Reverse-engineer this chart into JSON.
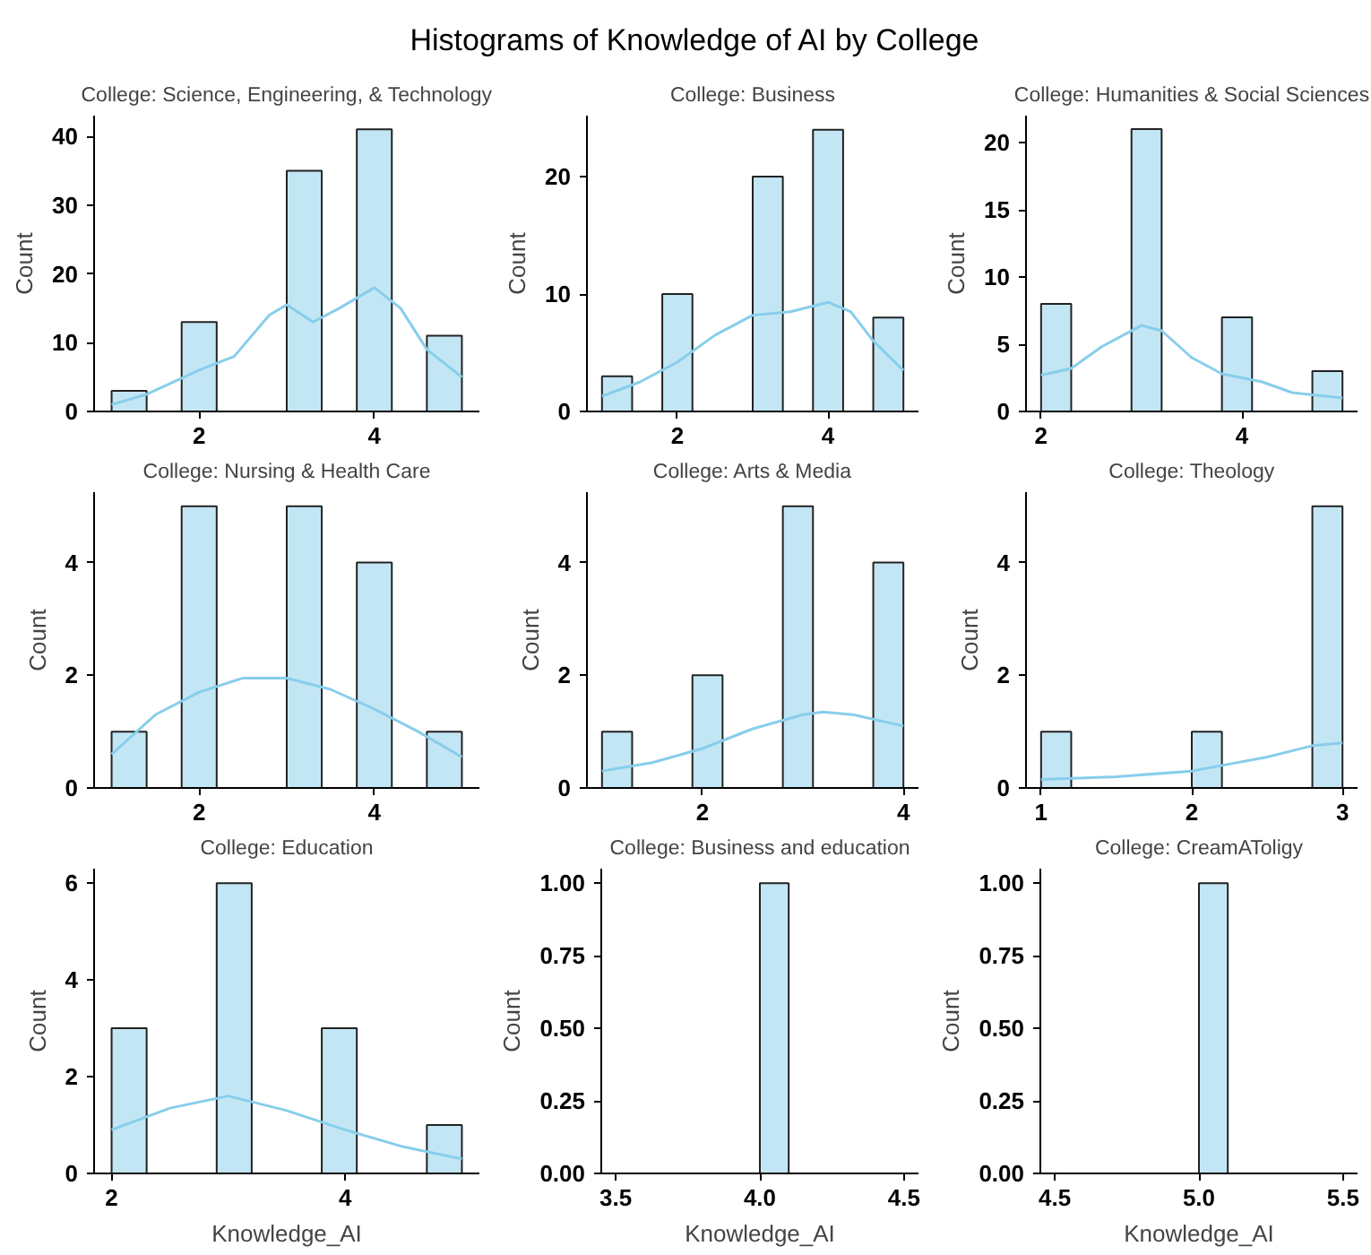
{
  "chart_data": [
    {
      "type": "histogram",
      "annotations": [
        "Histograms of Knowledge of AI by College"
      ],
      "title": "College: Science, Engineering, & Technology",
      "ylabel": "Count",
      "bins": [
        1,
        1.4,
        1.8,
        2.2,
        2.6,
        3,
        3.4,
        3.8,
        4.2,
        4.6,
        5
      ],
      "values": [
        3,
        0,
        13,
        0,
        0,
        35,
        0,
        41,
        0,
        11
      ],
      "color": "#c3e6f5",
      "series": [
        {
          "type": "line",
          "color": "#87ceeb",
          "x": [
            1,
            1.4,
            2,
            2.4,
            2.8,
            3,
            3.3,
            3.6,
            4,
            4.3,
            4.6,
            5
          ],
          "values": [
            1,
            2.5,
            6,
            8,
            14,
            15.5,
            13,
            15,
            18,
            15,
            9,
            5
          ]
        }
      ],
      "xlim": [
        0.8,
        5.2
      ],
      "ylim": [
        0,
        43
      ],
      "xticks": [
        2,
        4
      ],
      "yticks": [
        0,
        10,
        20,
        30,
        40
      ],
      "grid": false
    },
    {
      "type": "histogram",
      "title": "College: Business",
      "ylabel": "Count",
      "bins": [
        1,
        1.4,
        1.8,
        2.2,
        2.6,
        3,
        3.4,
        3.8,
        4.2,
        4.6,
        5
      ],
      "values": [
        3,
        0,
        10,
        0,
        0,
        20,
        0,
        24,
        0,
        8
      ],
      "color": "#c3e6f5",
      "series": [
        {
          "type": "line",
          "color": "#87ceeb",
          "x": [
            1,
            1.5,
            2,
            2.5,
            3,
            3.5,
            4,
            4.3,
            4.6,
            5
          ],
          "values": [
            1.3,
            2.5,
            4.2,
            6.5,
            8.2,
            8.5,
            9.3,
            8.5,
            6,
            3.5
          ]
        }
      ],
      "xlim": [
        0.8,
        5.2
      ],
      "ylim": [
        0,
        25.2
      ],
      "xticks": [
        2,
        4
      ],
      "yticks": [
        0,
        10,
        20
      ],
      "grid": false
    },
    {
      "type": "histogram",
      "title": "College: Humanities & Social Sciences",
      "ylabel": "Count",
      "bins": [
        2,
        2.3,
        2.6,
        2.9,
        3.2,
        3.5,
        3.8,
        4.1,
        4.4,
        4.7,
        5
      ],
      "values": [
        8,
        0,
        0,
        21,
        0,
        0,
        7,
        0,
        0,
        3
      ],
      "color": "#c3e6f5",
      "series": [
        {
          "type": "line",
          "color": "#87ceeb",
          "x": [
            2,
            2.3,
            2.6,
            3,
            3.2,
            3.5,
            3.8,
            4.2,
            4.5,
            5
          ],
          "values": [
            2.7,
            3.2,
            4.8,
            6.4,
            6,
            4,
            2.8,
            2.2,
            1.4,
            1
          ]
        }
      ],
      "xlim": [
        1.85,
        5.15
      ],
      "ylim": [
        0,
        22
      ],
      "xticks": [
        2,
        4
      ],
      "yticks": [
        0,
        5,
        10,
        15,
        20
      ],
      "grid": false
    },
    {
      "type": "histogram",
      "title": "College: Nursing & Health Care",
      "ylabel": "Count",
      "bins": [
        1,
        1.4,
        1.8,
        2.2,
        2.6,
        3,
        3.4,
        3.8,
        4.2,
        4.6,
        5
      ],
      "values": [
        1,
        0,
        5,
        0,
        0,
        5,
        0,
        4,
        0,
        1
      ],
      "color": "#c3e6f5",
      "series": [
        {
          "type": "line",
          "color": "#87ceeb",
          "x": [
            1,
            1.5,
            2,
            2.5,
            3,
            3.5,
            4,
            4.5,
            5
          ],
          "values": [
            0.6,
            1.3,
            1.7,
            1.95,
            1.95,
            1.75,
            1.4,
            1,
            0.55
          ]
        }
      ],
      "xlim": [
        0.8,
        5.2
      ],
      "ylim": [
        0,
        5.25
      ],
      "xticks": [
        2,
        4
      ],
      "yticks": [
        0,
        2,
        4
      ],
      "grid": false
    },
    {
      "type": "histogram",
      "title": "College: Arts & Media",
      "ylabel": "Count",
      "bins": [
        1,
        1.3,
        1.6,
        1.9,
        2.2,
        2.5,
        2.8,
        3.1,
        3.4,
        3.7,
        4
      ],
      "values": [
        1,
        0,
        0,
        2,
        0,
        0,
        5,
        0,
        0,
        4
      ],
      "color": "#c3e6f5",
      "series": [
        {
          "type": "line",
          "color": "#87ceeb",
          "x": [
            1,
            1.5,
            2,
            2.5,
            3,
            3.2,
            3.5,
            4
          ],
          "values": [
            0.3,
            0.45,
            0.7,
            1.05,
            1.3,
            1.35,
            1.3,
            1.1
          ]
        }
      ],
      "xlim": [
        0.85,
        4.15
      ],
      "ylim": [
        0,
        5.25
      ],
      "xticks": [
        2,
        4
      ],
      "yticks": [
        0,
        2,
        4
      ],
      "grid": false
    },
    {
      "type": "histogram",
      "title": "College: Theology",
      "ylabel": "Count",
      "bins": [
        1,
        1.2,
        1.4,
        1.6,
        1.8,
        2,
        2.2,
        2.4,
        2.6,
        2.8,
        3
      ],
      "values": [
        1,
        0,
        0,
        0,
        0,
        1,
        0,
        0,
        0,
        5
      ],
      "color": "#c3e6f5",
      "series": [
        {
          "type": "line",
          "color": "#87ceeb",
          "x": [
            1,
            1.5,
            2,
            2.5,
            2.8,
            3
          ],
          "values": [
            0.15,
            0.2,
            0.3,
            0.55,
            0.75,
            0.8
          ]
        }
      ],
      "xlim": [
        0.9,
        3.1
      ],
      "ylim": [
        0,
        5.25
      ],
      "xticks": [
        1,
        2,
        3
      ],
      "yticks": [
        0,
        2,
        4
      ],
      "grid": false
    },
    {
      "type": "histogram",
      "title": "College: Education",
      "xlabel": "Knowledge_AI",
      "ylabel": "Count",
      "bins": [
        2,
        2.3,
        2.6,
        2.9,
        3.2,
        3.5,
        3.8,
        4.1,
        4.4,
        4.7,
        5
      ],
      "values": [
        3,
        0,
        0,
        6,
        0,
        0,
        3,
        0,
        0,
        1
      ],
      "color": "#c3e6f5",
      "series": [
        {
          "type": "line",
          "color": "#87ceeb",
          "x": [
            2,
            2.5,
            3,
            3.5,
            4,
            4.5,
            5
          ],
          "values": [
            0.9,
            1.35,
            1.6,
            1.3,
            0.9,
            0.55,
            0.3
          ]
        }
      ],
      "xlim": [
        1.85,
        5.15
      ],
      "ylim": [
        0,
        6.3
      ],
      "xticks": [
        2,
        4
      ],
      "yticks": [
        0,
        2,
        4,
        6
      ],
      "grid": false
    },
    {
      "type": "histogram",
      "title": "College: Business and education",
      "xlabel": "Knowledge_AI",
      "ylabel": "Count",
      "bins": [
        3.5,
        3.6,
        3.7,
        3.8,
        3.9,
        4,
        4.1,
        4.2,
        4.3,
        4.4,
        4.5
      ],
      "values": [
        0,
        0,
        0,
        0,
        0,
        1,
        0,
        0,
        0,
        0
      ],
      "color": "#c3e6f5",
      "xlim": [
        3.45,
        4.55
      ],
      "ylim": [
        0,
        1.05
      ],
      "xticks": [
        3.5,
        {
          "value": 4,
          "label": "4.0"
        },
        4.5
      ],
      "yticks": [
        {
          "value": 0,
          "label": "0.00"
        },
        0.25,
        {
          "value": 0.5,
          "label": "0.50"
        },
        0.75,
        {
          "value": 1,
          "label": "1.00"
        }
      ],
      "grid": false
    },
    {
      "type": "histogram",
      "title": "College: CreamAToligy",
      "xlabel": "Knowledge_AI",
      "ylabel": "Count",
      "bins": [
        4.5,
        4.6,
        4.7,
        4.8,
        4.9,
        5,
        5.1,
        5.2,
        5.3,
        5.4,
        5.5
      ],
      "values": [
        0,
        0,
        0,
        0,
        0,
        1,
        0,
        0,
        0,
        0
      ],
      "color": "#c3e6f5",
      "xlim": [
        4.45,
        5.55
      ],
      "ylim": [
        0,
        1.05
      ],
      "xticks": [
        4.5,
        {
          "value": 5,
          "label": "5.0"
        },
        5.5
      ],
      "yticks": [
        {
          "value": 0,
          "label": "0.00"
        },
        0.25,
        {
          "value": 0.5,
          "label": "0.50"
        },
        0.75,
        {
          "value": 1,
          "label": "1.00"
        }
      ],
      "grid": false
    }
  ]
}
